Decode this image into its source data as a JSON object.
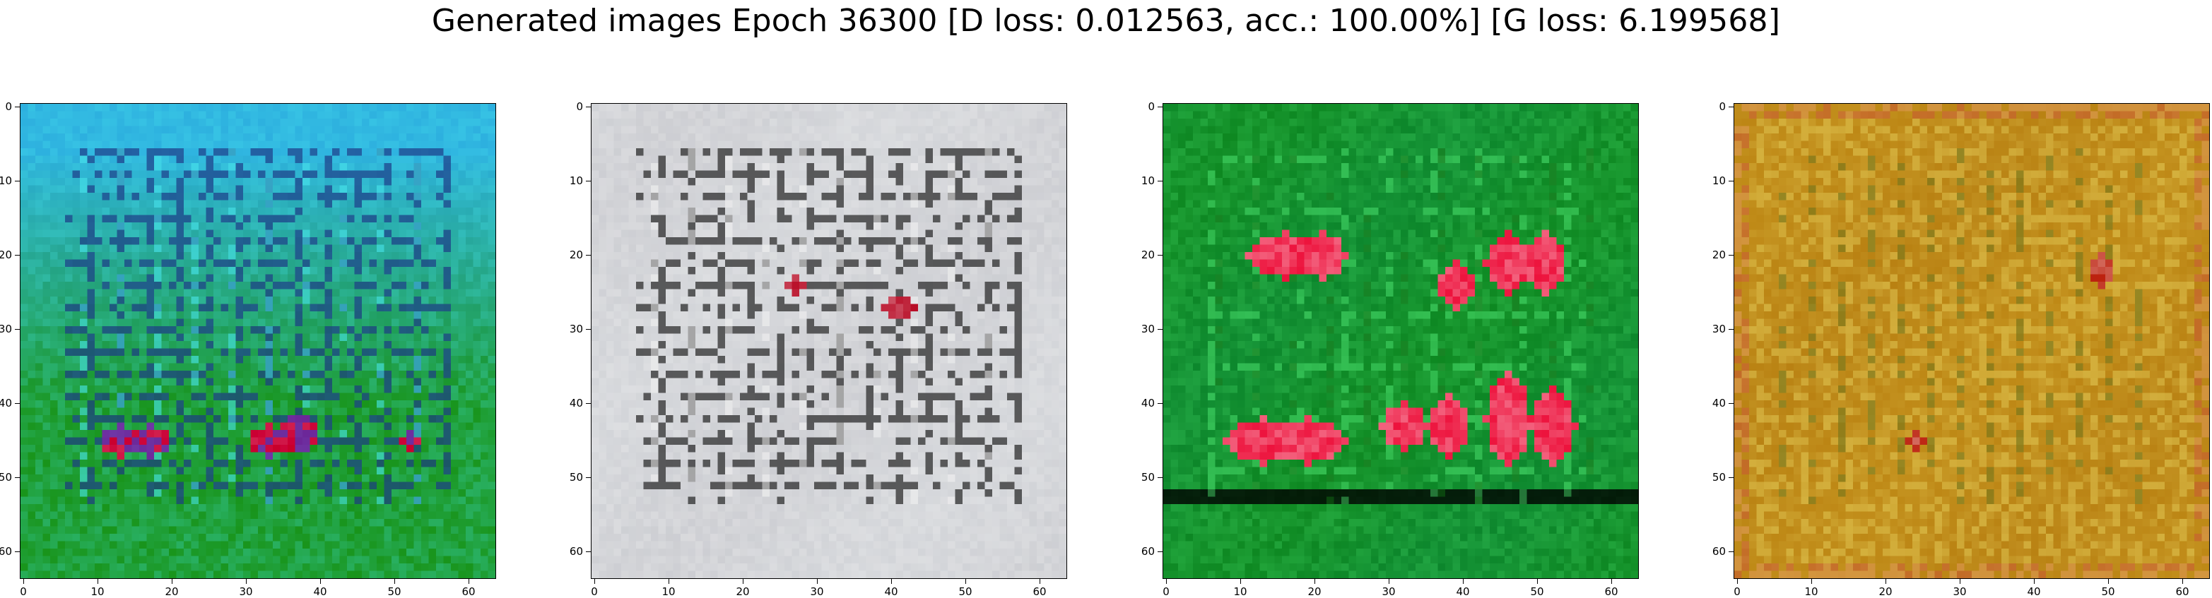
{
  "figure": {
    "title": "Generated images Epoch 36300 [D loss: 0.012563, acc.: 100.00%] [G loss: 6.199568]"
  },
  "axes": {
    "x_ticks": [
      0,
      10,
      20,
      30,
      40,
      50,
      60
    ],
    "y_ticks": [
      0,
      10,
      20,
      30,
      40,
      50,
      60
    ],
    "range": [
      0,
      63
    ]
  },
  "panels": [
    {
      "name": "cyan-green",
      "base_color": "#1c9a2a",
      "top_color": "#2fb4e0",
      "grid_color": "#1a2f80",
      "highlight_color": "#49e7ee",
      "accent_color": "#d11e4d"
    },
    {
      "name": "gray-grid",
      "base_color": "#c8c8cd",
      "top_color": "#dcdfe2",
      "grid_color": "#121212",
      "highlight_color": "#f2f2f2",
      "accent_color": "#c4364b"
    },
    {
      "name": "green-red",
      "base_color": "#138f1a",
      "top_color": "#0f8b3d",
      "grid_color": "#0f6a10",
      "highlight_color": "#4adf6d",
      "accent_color": "#f03a5d"
    },
    {
      "name": "gold",
      "base_color": "#c7951e",
      "top_color": "#b67f14",
      "grid_color": "#6d6c12",
      "highlight_color": "#e6d05c",
      "accent_color": "#c74535"
    }
  ]
}
